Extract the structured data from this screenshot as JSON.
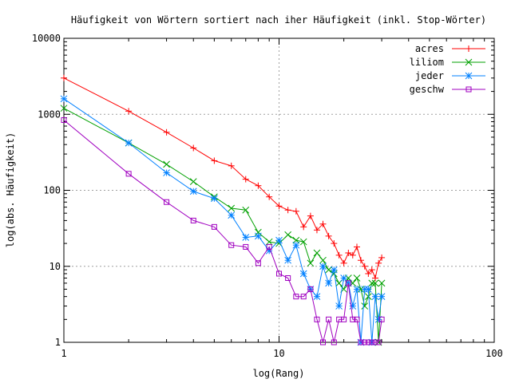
{
  "chart_data": {
    "type": "line",
    "title": "Häufigkeit von Wörtern sortiert nach iher Häufigkeit (inkl. Stop-Wörter)",
    "xlabel": "log(Rang)",
    "ylabel": "log(abs. Häufigkeit)",
    "x_scale": "log",
    "y_scale": "log",
    "xlim": [
      1,
      100
    ],
    "ylim": [
      1,
      10000
    ],
    "x_ticks": [
      1,
      10,
      100
    ],
    "x_tick_labels": [
      "1",
      "10",
      "100"
    ],
    "y_ticks": [
      1,
      10,
      100,
      1000,
      10000
    ],
    "y_tick_labels": [
      "1",
      "10",
      "100",
      "1000",
      "10000"
    ],
    "grid": true,
    "legend_position": "top-right",
    "series": [
      {
        "name": "acres",
        "color": "#ff0000",
        "marker": "plus",
        "x": [
          1,
          2,
          3,
          4,
          5,
          6,
          7,
          8,
          9,
          10,
          11,
          12,
          13,
          14,
          15,
          16,
          17,
          18,
          19,
          20,
          21,
          22,
          23,
          24,
          25,
          26,
          27,
          28,
          29,
          30
        ],
        "y": [
          3000,
          1100,
          580,
          360,
          245,
          210,
          140,
          115,
          82,
          62,
          55,
          53,
          33,
          46,
          30,
          36,
          25,
          20,
          14,
          11,
          15,
          14,
          18,
          12,
          10,
          8,
          9,
          7,
          11,
          13
        ]
      },
      {
        "name": "liliom",
        "color": "#00a000",
        "marker": "cross",
        "x": [
          1,
          2,
          3,
          4,
          5,
          6,
          7,
          8,
          9,
          10,
          11,
          12,
          13,
          14,
          15,
          16,
          17,
          18,
          19,
          20,
          21,
          22,
          23,
          24,
          25,
          26,
          27,
          28,
          29,
          30
        ],
        "y": [
          1200,
          420,
          220,
          130,
          82,
          58,
          55,
          28,
          21,
          20,
          26,
          22,
          21,
          11,
          15,
          12,
          9,
          8,
          6,
          5,
          7,
          6,
          7,
          5,
          3,
          4,
          6,
          6,
          1,
          6
        ]
      },
      {
        "name": "jeder",
        "color": "#0080ff",
        "marker": "star",
        "x": [
          1,
          2,
          3,
          4,
          5,
          6,
          7,
          8,
          9,
          10,
          11,
          12,
          13,
          14,
          15,
          16,
          17,
          18,
          19,
          20,
          21,
          22,
          23,
          24,
          25,
          26,
          27,
          28,
          29,
          30
        ],
        "y": [
          1600,
          420,
          170,
          97,
          78,
          47,
          24,
          25,
          16,
          22,
          12,
          19,
          8,
          5,
          4,
          10,
          6,
          9,
          3,
          7,
          6,
          3,
          5,
          1,
          5,
          5,
          1,
          4,
          2,
          4
        ]
      },
      {
        "name": "geschw",
        "color": "#a000c0",
        "marker": "square",
        "x": [
          1,
          2,
          3,
          4,
          5,
          6,
          7,
          8,
          9,
          10,
          11,
          12,
          13,
          14,
          15,
          16,
          17,
          18,
          19,
          20,
          21,
          22,
          23,
          24,
          25,
          26,
          27,
          28,
          29,
          30
        ],
        "y": [
          840,
          165,
          70,
          40,
          33,
          19,
          18,
          11,
          18,
          8,
          7,
          4,
          4,
          5,
          2,
          1,
          2,
          1,
          2,
          2,
          6,
          2,
          2,
          1,
          1,
          1,
          1,
          1,
          1,
          2
        ]
      }
    ]
  }
}
